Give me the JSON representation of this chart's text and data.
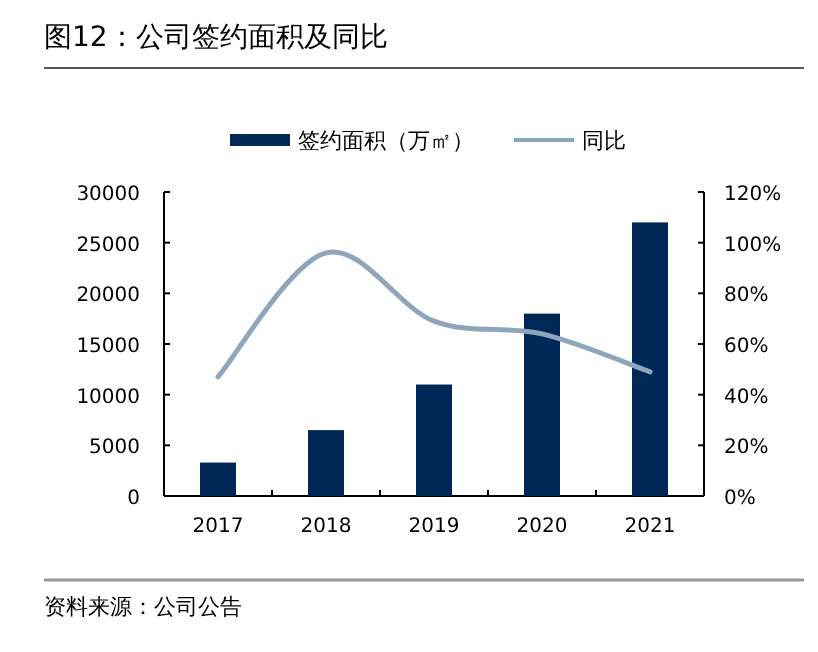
{
  "chart_data": {
    "type": "bar",
    "title": "图12：公司签约面积及同比",
    "categories": [
      "2017",
      "2018",
      "2019",
      "2020",
      "2021"
    ],
    "series": [
      {
        "name": "签约面积（万㎡）",
        "color": "#002856",
        "values": [
          3300,
          6500,
          11000,
          18000,
          27000
        ]
      },
      {
        "name": "同比",
        "type": "line",
        "axis": "y2",
        "color": "#8fa5bb",
        "values": [
          47,
          96,
          69,
          64,
          49
        ]
      }
    ],
    "ylim": [
      0,
      30000
    ],
    "yticks": [
      0,
      5000,
      10000,
      15000,
      20000,
      25000,
      30000
    ],
    "y2lim": [
      0,
      120
    ],
    "y2ticks": [
      {
        "value": 0,
        "label": "0%"
      },
      {
        "value": 20,
        "label": "20%"
      },
      {
        "value": 40,
        "label": "40%"
      },
      {
        "value": 60,
        "label": "60%"
      },
      {
        "value": 80,
        "label": "80%"
      },
      {
        "value": 100,
        "label": "100%"
      },
      {
        "value": 120,
        "label": "120%"
      }
    ],
    "legend": "top",
    "grid": false,
    "annotations": [
      "资料来源：公司公告"
    ]
  }
}
